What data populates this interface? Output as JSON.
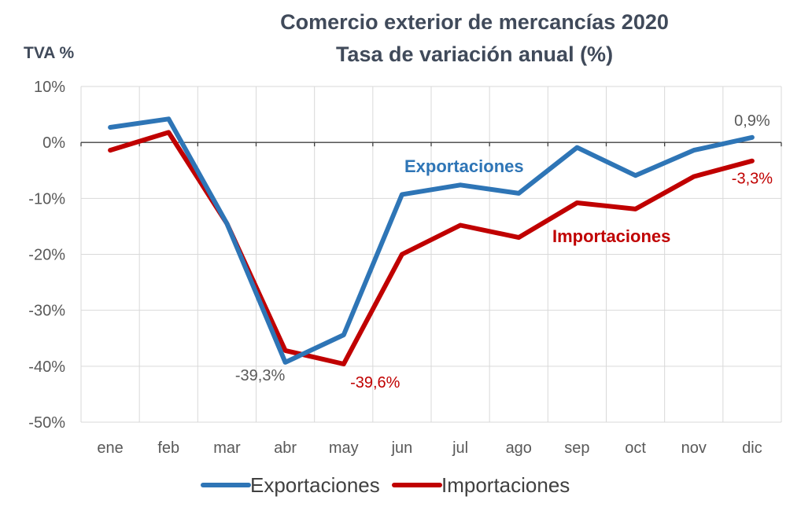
{
  "chart_data": {
    "type": "line",
    "title": "Comercio exterior de mercancías 2020",
    "subtitle": "Tasa de variación anual (%)",
    "ylabel": "TVA %",
    "xlabel": "",
    "categories": [
      "ene",
      "feb",
      "mar",
      "abr",
      "may",
      "jun",
      "jul",
      "ago",
      "sep",
      "oct",
      "nov",
      "dic"
    ],
    "ylim": [
      -50,
      10
    ],
    "yticks": [
      10,
      0,
      -10,
      -20,
      -30,
      -40,
      -50
    ],
    "ytick_labels": [
      "10%",
      "0%",
      "-10%",
      "-20%",
      "-30%",
      "-40%",
      "-50%"
    ],
    "grid": true,
    "legend_position": "bottom",
    "series": [
      {
        "name": "Exportaciones",
        "color": "#2e75b6",
        "values": [
          2.7,
          4.2,
          -14.5,
          -39.3,
          -34.4,
          -9.3,
          -7.6,
          -9.1,
          -0.9,
          -5.9,
          -1.4,
          0.9
        ]
      },
      {
        "name": "Importaciones",
        "color": "#c00000",
        "values": [
          -1.4,
          1.8,
          -14.5,
          -37.2,
          -39.6,
          -20.0,
          -14.8,
          -17.0,
          -10.8,
          -11.9,
          -6.1,
          -3.3
        ]
      }
    ],
    "series_labels": [
      "Exportaciones",
      "Importaciones"
    ],
    "annotations": [
      {
        "text": "0,9%",
        "series": 0,
        "index": 11,
        "color": "#595959"
      },
      {
        "text": "-39,3%",
        "series": 0,
        "index": 3,
        "color": "#595959"
      },
      {
        "text": "-39,6%",
        "series": 1,
        "index": 4,
        "color": "#c00000"
      },
      {
        "text": "-3,3%",
        "series": 1,
        "index": 11,
        "color": "#c00000"
      }
    ]
  }
}
